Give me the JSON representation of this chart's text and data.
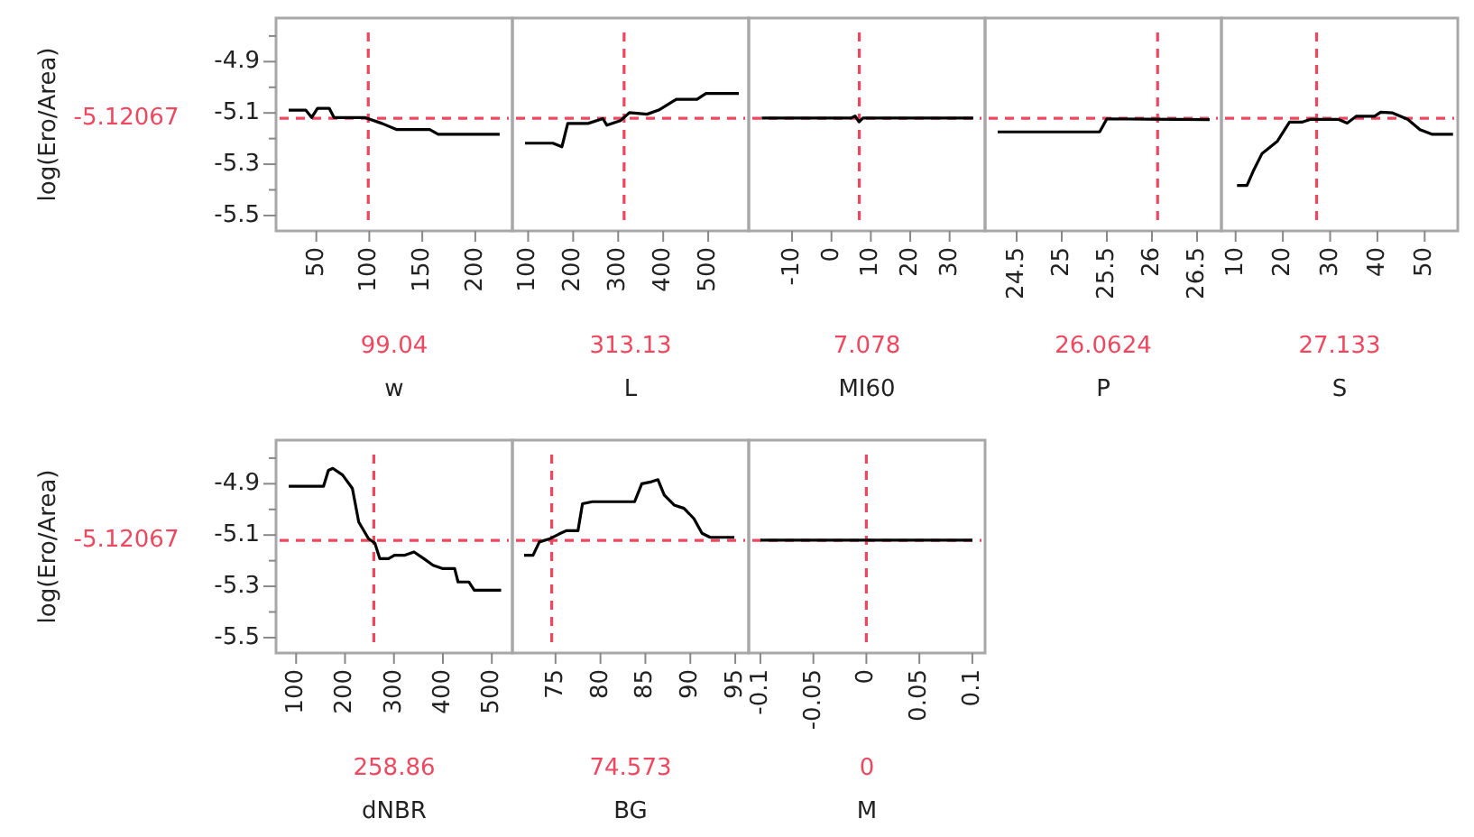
{
  "chart_data": [
    {
      "type": "line",
      "ylabel": "log(Ero/Area)",
      "xlabel": "w",
      "xlim": [
        12,
        235
      ],
      "xticks": [
        50,
        100,
        150,
        200
      ],
      "ylim": [
        -5.56,
        -4.73
      ],
      "yticks": [
        {
          "value": -4.8,
          "label": null
        },
        -4.9,
        {
          "value": -5.0,
          "label": null
        },
        -5.1,
        {
          "value": -5.2,
          "label": null
        },
        -5.3,
        {
          "value": -5.4,
          "label": null
        },
        -5.5
      ],
      "x": [
        23.9,
        40,
        45.6,
        51.1,
        62.2,
        66.7,
        95.6,
        112,
        126,
        157,
        165,
        223
      ],
      "series": [
        {
          "color": "#000000",
          "values": [
            -5.089,
            -5.089,
            -5.118,
            -5.082,
            -5.082,
            -5.118,
            -5.118,
            -5.141,
            -5.165,
            -5.165,
            -5.183,
            -5.183
          ]
        }
      ],
      "ref_lines": [
        {
          "axis": "y",
          "value": -5.12067,
          "label": "-5.12067",
          "color": "#f0475f",
          "line_style": "dashed"
        },
        {
          "axis": "x",
          "value": 99.04,
          "label": "99.04",
          "color": "#f0475f",
          "line_style": "dashed"
        }
      ]
    },
    {
      "type": "line",
      "xlabel": "L",
      "tick_labels": "x",
      "xlim": [
        65,
        590
      ],
      "xticks": [
        100,
        200,
        300,
        400,
        500
      ],
      "ylim": [
        -5.56,
        -4.73
      ],
      "x": [
        93,
        155,
        175,
        188,
        233,
        266,
        275,
        305,
        325,
        364,
        390,
        429,
        475,
        495,
        547,
        568
      ],
      "series": [
        {
          "color": "#000000",
          "values": [
            -5.218,
            -5.218,
            -5.232,
            -5.141,
            -5.141,
            -5.122,
            -5.148,
            -5.13,
            -5.099,
            -5.105,
            -5.089,
            -5.047,
            -5.047,
            -5.024,
            -5.024,
            -5.024
          ]
        }
      ],
      "ref_lines": [
        {
          "axis": "y",
          "value": -5.12067,
          "color": "#f0475f",
          "line_style": "dashed"
        },
        {
          "axis": "x",
          "value": 313.13,
          "label": "313.13",
          "color": "#f0475f",
          "line_style": "dashed"
        }
      ]
    },
    {
      "type": "line",
      "xlabel": "MI60",
      "tick_labels": "x",
      "xlim": [
        -21,
        39
      ],
      "xticks": [
        -10,
        0,
        10,
        20,
        30
      ],
      "ylim": [
        -5.56,
        -4.73
      ],
      "x": [
        -17.7,
        5,
        6,
        7,
        8,
        36
      ],
      "series": [
        {
          "color": "#000000",
          "values": [
            -5.12,
            -5.12,
            -5.112,
            -5.135,
            -5.12,
            -5.12
          ]
        }
      ],
      "ref_lines": [
        {
          "axis": "y",
          "value": -5.12067,
          "color": "#f0475f",
          "line_style": "dashed"
        },
        {
          "axis": "x",
          "value": 7.078,
          "label": "7.078",
          "color": "#f0475f",
          "line_style": "dashed"
        }
      ]
    },
    {
      "type": "line",
      "xlabel": "P",
      "tick_labels": "x",
      "xlim": [
        24.15,
        26.77
      ],
      "xticks": [
        24.5,
        25,
        25.5,
        26,
        26.5
      ],
      "ylim": [
        -5.56,
        -4.73
      ],
      "x": [
        24.29,
        25.42,
        25.5,
        26.64
      ],
      "series": [
        {
          "color": "#000000",
          "values": [
            -5.174,
            -5.174,
            -5.123,
            -5.126
          ]
        }
      ],
      "ref_lines": [
        {
          "axis": "y",
          "value": -5.12067,
          "color": "#f0475f",
          "line_style": "dashed"
        },
        {
          "axis": "x",
          "value": 26.0624,
          "label": "26.0624",
          "color": "#f0475f",
          "line_style": "dashed"
        }
      ]
    },
    {
      "type": "line",
      "xlabel": "S",
      "tick_labels": "x",
      "xlim": [
        7,
        57
      ],
      "xticks": [
        10,
        20,
        30,
        40,
        50
      ],
      "ylim": [
        -5.56,
        -4.73
      ],
      "x": [
        10.3,
        12.4,
        13.7,
        15.6,
        18.8,
        21.4,
        24,
        25.9,
        31.7,
        33.6,
        35.5,
        39.4,
        40.7,
        43.2,
        46.4,
        49,
        51.5,
        56
      ],
      "series": [
        {
          "color": "#000000",
          "values": [
            -5.383,
            -5.383,
            -5.328,
            -5.258,
            -5.211,
            -5.136,
            -5.136,
            -5.125,
            -5.125,
            -5.14,
            -5.113,
            -5.113,
            -5.097,
            -5.1,
            -5.125,
            -5.165,
            -5.183,
            -5.183
          ]
        }
      ],
      "ref_lines": [
        {
          "axis": "y",
          "value": -5.12067,
          "color": "#f0475f",
          "line_style": "dashed"
        },
        {
          "axis": "x",
          "value": 27.133,
          "label": "27.133",
          "color": "#f0475f",
          "line_style": "dashed"
        }
      ]
    },
    {
      "type": "line",
      "ylabel": "log(Ero/Area)",
      "xlabel": "dNBR",
      "xlim": [
        59,
        542
      ],
      "xticks": [
        100,
        200,
        300,
        400,
        500
      ],
      "ylim": [
        -5.56,
        -4.73
      ],
      "yticks": [
        {
          "value": -4.8,
          "label": null
        },
        -4.9,
        {
          "value": -5.0,
          "label": null
        },
        -5.1,
        {
          "value": -5.2,
          "label": null
        },
        -5.3,
        {
          "value": -5.4,
          "label": null
        },
        -5.5
      ],
      "x": [
        85,
        156,
        166,
        175,
        195,
        215,
        228,
        248,
        261,
        271,
        289,
        301,
        321,
        341,
        361,
        380,
        400,
        424,
        431,
        453,
        464,
        519
      ],
      "series": [
        {
          "color": "#000000",
          "values": [
            -4.91,
            -4.91,
            -4.848,
            -4.84,
            -4.866,
            -4.918,
            -5.049,
            -5.114,
            -5.132,
            -5.192,
            -5.192,
            -5.179,
            -5.179,
            -5.166,
            -5.192,
            -5.218,
            -5.231,
            -5.231,
            -5.283,
            -5.283,
            -5.315,
            -5.315
          ]
        }
      ],
      "ref_lines": [
        {
          "axis": "y",
          "value": -5.12067,
          "label": "-5.12067",
          "color": "#f0475f",
          "line_style": "dashed"
        },
        {
          "axis": "x",
          "value": 258.86,
          "label": "258.86",
          "color": "#f0475f",
          "line_style": "dashed"
        }
      ]
    },
    {
      "type": "line",
      "xlabel": "BG",
      "tick_labels": "x",
      "xlim": [
        70.2,
        96.5
      ],
      "xticks": [
        75,
        80,
        85,
        90,
        95
      ],
      "ylim": [
        -5.56,
        -4.73
      ],
      "x": [
        71.5,
        72.5,
        73.2,
        74.4,
        75.4,
        76.2,
        77.5,
        78,
        79.1,
        83.8,
        84.6,
        85.7,
        86.4,
        87.1,
        88.2,
        89.3,
        90.4,
        91.3,
        92.2,
        94.9
      ],
      "series": [
        {
          "color": "#000000",
          "values": [
            -5.179,
            -5.179,
            -5.127,
            -5.114,
            -5.096,
            -5.083,
            -5.083,
            -4.978,
            -4.97,
            -4.97,
            -4.9,
            -4.892,
            -4.884,
            -4.944,
            -4.983,
            -4.996,
            -5.036,
            -5.093,
            -5.109,
            -5.109
          ]
        }
      ],
      "ref_lines": [
        {
          "axis": "y",
          "value": -5.12067,
          "color": "#f0475f",
          "line_style": "dashed"
        },
        {
          "axis": "x",
          "value": 74.573,
          "label": "74.573",
          "color": "#f0475f",
          "line_style": "dashed"
        }
      ]
    },
    {
      "type": "line",
      "xlabel": "M",
      "tick_labels": "x",
      "xlim": [
        -0.111,
        0.112
      ],
      "xticks": [
        -0.1,
        -0.05,
        0,
        0.05,
        0.1
      ],
      "ylim": [
        -5.56,
        -4.73
      ],
      "x": [
        -0.1,
        0.1
      ],
      "series": [
        {
          "color": "#000000",
          "values": [
            -5.12,
            -5.12
          ]
        }
      ],
      "ref_lines": [
        {
          "axis": "y",
          "value": -5.12067,
          "color": "#f0475f",
          "line_style": "dashed"
        },
        {
          "axis": "x",
          "value": 0,
          "label": "0",
          "color": "#f0475f",
          "line_style": "dashed"
        }
      ]
    }
  ]
}
